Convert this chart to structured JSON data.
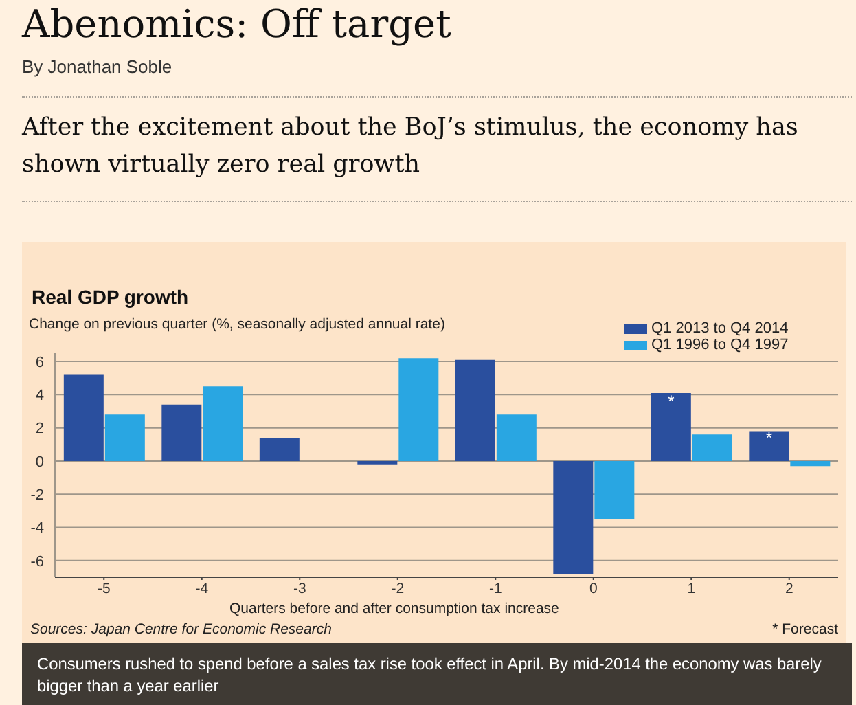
{
  "chart_data": {
    "type": "bar",
    "title": "Abenomics: Off target",
    "subtitle": "After the excitement about the BoJ’s stimulus, the economy has shown virtually zero real growth",
    "ylabel": "Change on previous quarter (%, seasonally adjusted annual rate)",
    "xlabel": "Quarters before and after consumption tax increase",
    "annotations": [
      "By Jonathan Soble",
      "Real GDP growth",
      "Sources: Japan Centre for Economic Research",
      "* Forecast",
      "Consumers rushed to spend before a sales tax rise took effect in April. By mid-2014 the economy was barely bigger than a year earlier",
      {
        "text": "*",
        "x": "1",
        "y": 3.6
      },
      {
        "text": "*",
        "x": "2",
        "y": 1.4
      }
    ],
    "categories": [
      "-5",
      "-4",
      "-3",
      "-2",
      "-1",
      "0",
      "1",
      "2"
    ],
    "series": [
      {
        "name": "Q1 2013 to Q4 2014",
        "color": "#2a4f9e",
        "values": [
          5.2,
          3.4,
          1.4,
          -0.2,
          6.1,
          -6.8,
          4.1,
          1.8
        ]
      },
      {
        "name": "Q1 1996 to Q4 1997",
        "color": "#29a6e2",
        "values": [
          2.8,
          4.5,
          null,
          6.2,
          2.8,
          -3.5,
          1.6,
          -0.3
        ]
      }
    ],
    "ylim": [
      -7,
      6.5
    ],
    "yticks": [
      -6,
      -4,
      -2,
      0,
      2,
      4,
      6
    ],
    "grid": "y",
    "legend": "top right"
  }
}
